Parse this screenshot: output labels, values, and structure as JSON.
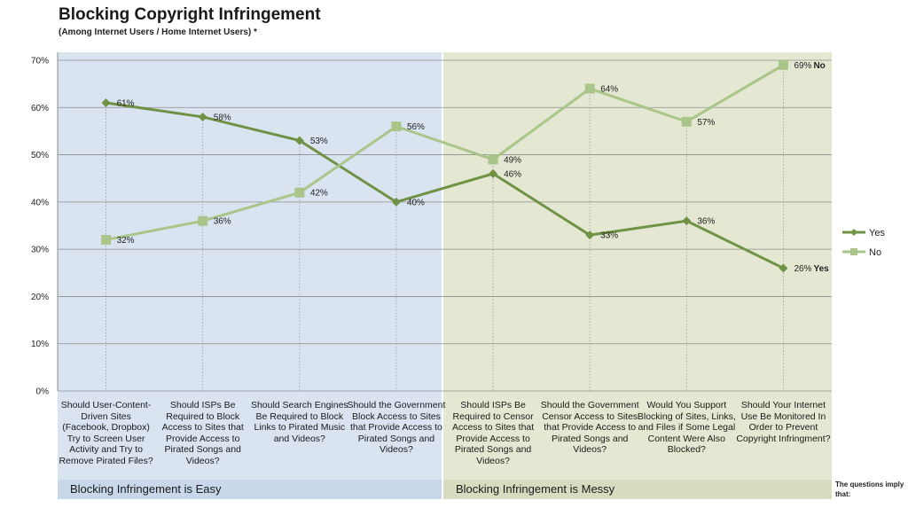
{
  "chart_data": {
    "type": "line",
    "title": "Blocking Copyright Infringement",
    "subtitle": "(Among Internet Users / Home Internet Users) *",
    "ylim": [
      0,
      70
    ],
    "yticks": [
      "0%",
      "10%",
      "20%",
      "30%",
      "40%",
      "50%",
      "60%",
      "70%"
    ],
    "grid": true,
    "legend_position": "right",
    "categories": [
      "Should User-Content-Driven Sites (Facebook, Dropbox) Try to Screen User Activity and Try to Remove Pirated Files?",
      "Should ISPs Be Required to Block Access to Sites that Provide Access to Pirated Songs and Videos?",
      "Should Search Engines Be Required to Block Links to Pirated Music and Videos?",
      "Should the Government Block Access to Sites that Provide Access to Pirated Songs and Videos?",
      "Should ISPs Be Required to Censor Access to Sites that Provide Access to Pirated Songs and Videos?",
      "Should the Government Censor Access to Sites that Provide Access to Pirated Songs and Videos?",
      "Would You Support Blocking of Sites, Links, and Files if Some Legal Content Were Also Blocked?",
      "Should Your Internet Use Be Monitored In Order to Prevent Copyright Infringment?"
    ],
    "series": [
      {
        "name": "Yes",
        "color": "#6f9245",
        "marker": "diamond",
        "values": [
          61,
          58,
          53,
          40,
          46,
          33,
          36,
          26
        ],
        "labels": [
          "61%",
          "58%",
          "53%",
          "40%",
          "46%",
          "33%",
          "36%",
          "26%"
        ],
        "end_label": "Yes"
      },
      {
        "name": "No",
        "color": "#a9c58a",
        "marker": "square",
        "values": [
          32,
          36,
          42,
          56,
          49,
          64,
          57,
          69
        ],
        "labels": [
          "32%",
          "36%",
          "42%",
          "56%",
          "49%",
          "64%",
          "57%",
          "69%"
        ],
        "end_label": "No"
      }
    ],
    "bands": [
      {
        "label": "Blocking Infringement is Easy",
        "from_category": 0,
        "to_category": 3,
        "color": "#dae4f1"
      },
      {
        "label": "Blocking Infringement is Messy",
        "from_category": 4,
        "to_category": 7,
        "color": "#e4e8d2"
      }
    ],
    "bottom_note": "The questions imply that:"
  },
  "colors": {
    "grid": "#8c8c8c",
    "axis": "#8c8c8c",
    "dropline": "#9a9a9a"
  }
}
